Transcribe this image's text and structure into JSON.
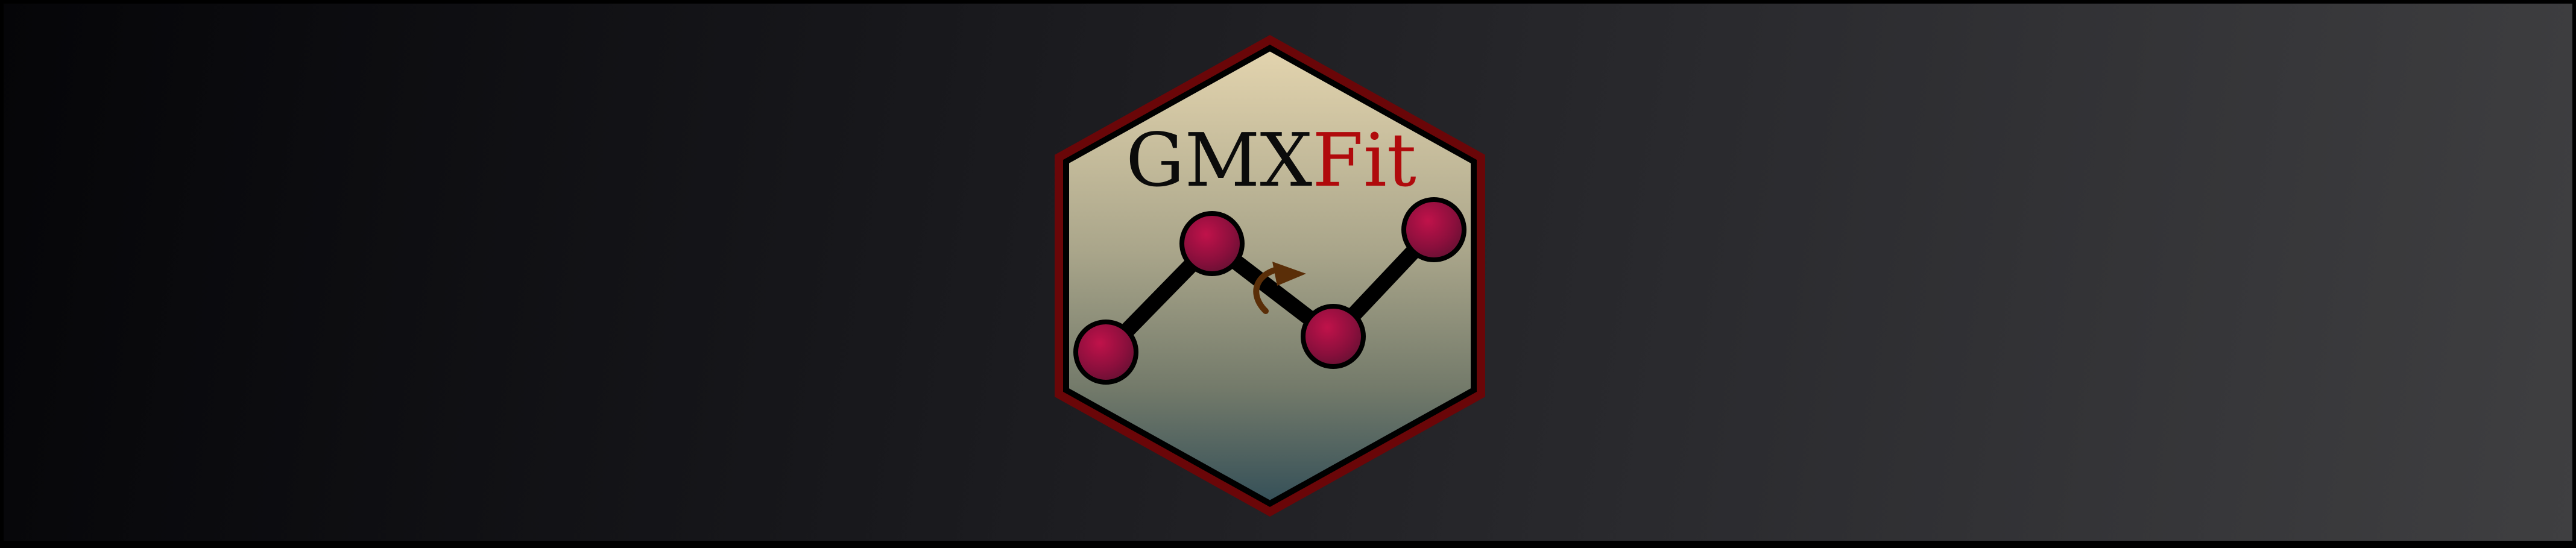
{
  "logo": {
    "title_part1": "GMX",
    "title_part2": "Fit",
    "colors": {
      "border": "#6a0608",
      "hex_top": "#e3d4ae",
      "hex_bottom": "#355058",
      "title_dark": "#0b0b0b",
      "title_accent": "#b00a0c",
      "atom_light": "#c0124a",
      "atom_dark": "#5c1030",
      "bond": "#000000",
      "rotation_arrow": "#5a2e08"
    },
    "icons": [
      "atom",
      "bond",
      "rotation-arrow-icon"
    ]
  }
}
